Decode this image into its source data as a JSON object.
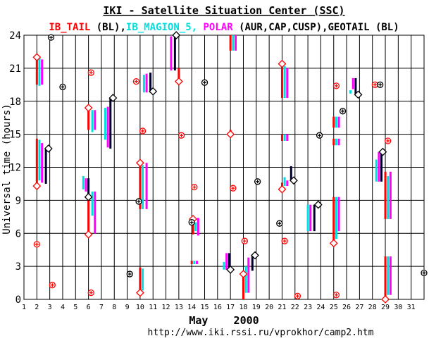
{
  "chart_data": {
    "type": "scatter",
    "title": "IKI - Satellite Situation Center (SSC)",
    "legend": [
      {
        "text": "IB_TAIL",
        "color": "#ff0000"
      },
      {
        "text": " (BL),",
        "color": "#000000"
      },
      {
        "text": "IB_MAGION_5,",
        "color": "#00e0e0"
      },
      {
        "text": " POLAR",
        "color": "#ff00ff"
      },
      {
        "text": " (AUR,CAP,CUSP),",
        "color": "#000000"
      },
      {
        "text": "GEOTAIL",
        "color": "#000000"
      },
      {
        "text": " (BL)",
        "color": "#000000"
      }
    ],
    "ylabel": "Universal time (hours)",
    "xlabel": "May    2000",
    "footer": "http://www.iki.rssi.ru/vprokhor/camp2.htm",
    "xlim": [
      1,
      32
    ],
    "ylim": [
      0,
      24
    ],
    "x_ticks": [
      1,
      2,
      3,
      4,
      5,
      6,
      7,
      8,
      9,
      10,
      11,
      12,
      13,
      14,
      15,
      16,
      17,
      18,
      19,
      20,
      21,
      22,
      23,
      24,
      25,
      26,
      27,
      28,
      29,
      30,
      31
    ],
    "y_ticks": [
      0,
      3,
      6,
      9,
      12,
      15,
      18,
      21,
      24
    ],
    "grid": true,
    "colors": {
      "ib_tail": "#ff0000",
      "magion": "#00e0e0",
      "polar": "#ff00ff",
      "geotail": "#000030",
      "grid": "#000000"
    },
    "segments": [
      {
        "day": 2.0,
        "series": "ib_tail",
        "from": 10.3,
        "to": 14.6
      },
      {
        "day": 2.2,
        "series": "magion",
        "from": 10.8,
        "to": 14.5
      },
      {
        "day": 2.4,
        "series": "polar",
        "from": 10.6,
        "to": 14.2
      },
      {
        "day": 2.7,
        "series": "geotail",
        "from": 10.5,
        "to": 13.7
      },
      {
        "day": 2.0,
        "series": "ib_tail",
        "from": 19.5,
        "to": 22.0
      },
      {
        "day": 2.2,
        "series": "magion",
        "from": 19.4,
        "to": 22.0
      },
      {
        "day": 2.4,
        "series": "polar",
        "from": 19.5,
        "to": 21.8
      },
      {
        "day": 5.6,
        "series": "magion",
        "from": 10.0,
        "to": 11.2
      },
      {
        "day": 5.8,
        "series": "polar",
        "from": 9.8,
        "to": 11.0
      },
      {
        "day": 6.0,
        "series": "geotail",
        "from": 9.3,
        "to": 11.0
      },
      {
        "day": 6.0,
        "series": "ib_tail",
        "from": 5.9,
        "to": 9.6
      },
      {
        "day": 6.3,
        "series": "magion",
        "from": 7.6,
        "to": 9.8
      },
      {
        "day": 6.5,
        "series": "polar",
        "from": 6.0,
        "to": 9.8
      },
      {
        "day": 6.0,
        "series": "ib_tail",
        "from": 15.4,
        "to": 17.4
      },
      {
        "day": 6.3,
        "series": "magion",
        "from": 15.2,
        "to": 17.2
      },
      {
        "day": 6.5,
        "series": "polar",
        "from": 15.4,
        "to": 17.2
      },
      {
        "day": 7.3,
        "series": "magion",
        "from": 14.5,
        "to": 17.4
      },
      {
        "day": 7.5,
        "series": "polar",
        "from": 13.8,
        "to": 17.5
      },
      {
        "day": 7.7,
        "series": "geotail",
        "from": 13.7,
        "to": 18.3
      },
      {
        "day": 10.0,
        "series": "ib_tail",
        "from": 0.6,
        "to": 2.9
      },
      {
        "day": 10.2,
        "series": "magion",
        "from": 0.8,
        "to": 2.8
      },
      {
        "day": 10.0,
        "series": "ib_tail",
        "from": 8.2,
        "to": 12.4
      },
      {
        "day": 10.2,
        "series": "magion",
        "from": 8.2,
        "to": 12.2
      },
      {
        "day": 10.5,
        "series": "polar",
        "from": 8.2,
        "to": 12.4
      },
      {
        "day": 10.3,
        "series": "magion",
        "from": 18.8,
        "to": 20.4
      },
      {
        "day": 10.5,
        "series": "polar",
        "from": 18.8,
        "to": 20.5
      },
      {
        "day": 10.8,
        "series": "geotail",
        "from": 18.8,
        "to": 20.6
      },
      {
        "day": 12.7,
        "series": "geotail",
        "from": 20.8,
        "to": 24.0
      },
      {
        "day": 12.4,
        "series": "polar",
        "from": 20.8,
        "to": 23.9
      },
      {
        "day": 13.0,
        "series": "ib_tail",
        "from": 19.8,
        "to": 21.0
      },
      {
        "day": 14.0,
        "series": "ib_tail",
        "from": 3.2,
        "to": 3.5
      },
      {
        "day": 14.2,
        "series": "magion",
        "from": 3.2,
        "to": 3.5
      },
      {
        "day": 14.4,
        "series": "polar",
        "from": 3.2,
        "to": 3.5
      },
      {
        "day": 14.1,
        "series": "ib_tail",
        "from": 5.9,
        "to": 7.3
      },
      {
        "day": 14.3,
        "series": "magion",
        "from": 6.2,
        "to": 7.0
      },
      {
        "day": 14.5,
        "series": "polar",
        "from": 5.8,
        "to": 7.4
      },
      {
        "day": 16.5,
        "series": "magion",
        "from": 2.7,
        "to": 3.4
      },
      {
        "day": 16.7,
        "series": "polar",
        "from": 2.7,
        "to": 4.2
      },
      {
        "day": 16.9,
        "series": "geotail",
        "from": 2.7,
        "to": 4.2
      },
      {
        "day": 17.0,
        "series": "ib_tail",
        "from": 22.6,
        "to": 24.0
      },
      {
        "day": 17.2,
        "series": "magion",
        "from": 22.6,
        "to": 24.0
      },
      {
        "day": 17.4,
        "series": "polar",
        "from": 22.6,
        "to": 24.0
      },
      {
        "day": 17.0,
        "series": "ib_tail",
        "from": 14.8,
        "to": 15.4
      },
      {
        "day": 18.0,
        "series": "ib_tail",
        "from": 0.0,
        "to": 2.4
      },
      {
        "day": 18.2,
        "series": "magion",
        "from": 0.6,
        "to": 3.0
      },
      {
        "day": 18.4,
        "series": "polar",
        "from": 0.6,
        "to": 3.8
      },
      {
        "day": 18.7,
        "series": "geotail",
        "from": 2.6,
        "to": 4.0
      },
      {
        "day": 21.0,
        "series": "ib_tail",
        "from": 18.3,
        "to": 21.4
      },
      {
        "day": 21.2,
        "series": "magion",
        "from": 18.3,
        "to": 21.2
      },
      {
        "day": 21.4,
        "series": "polar",
        "from": 18.3,
        "to": 21.0
      },
      {
        "day": 21.0,
        "series": "ib_tail",
        "from": 14.4,
        "to": 15.0
      },
      {
        "day": 21.2,
        "series": "magion",
        "from": 14.4,
        "to": 15.0
      },
      {
        "day": 21.4,
        "series": "polar",
        "from": 14.4,
        "to": 15.0
      },
      {
        "day": 21.0,
        "series": "ib_tail",
        "from": 10.0,
        "to": 10.6
      },
      {
        "day": 21.2,
        "series": "magion",
        "from": 10.3,
        "to": 11.1
      },
      {
        "day": 21.4,
        "series": "polar",
        "from": 10.3,
        "to": 10.8
      },
      {
        "day": 21.7,
        "series": "geotail",
        "from": 10.8,
        "to": 12.1
      },
      {
        "day": 23.0,
        "series": "magion",
        "from": 6.2,
        "to": 8.6
      },
      {
        "day": 23.2,
        "series": "polar",
        "from": 6.2,
        "to": 8.6
      },
      {
        "day": 23.5,
        "series": "geotail",
        "from": 6.2,
        "to": 8.6
      },
      {
        "day": 25.0,
        "series": "ib_tail",
        "from": 5.1,
        "to": 9.3
      },
      {
        "day": 25.2,
        "series": "magion",
        "from": 5.5,
        "to": 9.3
      },
      {
        "day": 25.4,
        "series": "polar",
        "from": 6.2,
        "to": 9.3
      },
      {
        "day": 25.0,
        "series": "ib_tail",
        "from": 14.0,
        "to": 14.6
      },
      {
        "day": 25.2,
        "series": "magion",
        "from": 14.0,
        "to": 14.6
      },
      {
        "day": 25.4,
        "series": "polar",
        "from": 14.0,
        "to": 14.6
      },
      {
        "day": 25.0,
        "series": "ib_tail",
        "from": 15.6,
        "to": 16.6
      },
      {
        "day": 25.2,
        "series": "magion",
        "from": 15.6,
        "to": 16.6
      },
      {
        "day": 25.4,
        "series": "polar",
        "from": 15.6,
        "to": 16.6
      },
      {
        "day": 26.3,
        "series": "magion",
        "from": 18.7,
        "to": 19.0
      },
      {
        "day": 26.5,
        "series": "polar",
        "from": 19.1,
        "to": 20.1
      },
      {
        "day": 26.7,
        "series": "geotail",
        "from": 18.6,
        "to": 20.1
      },
      {
        "day": 28.3,
        "series": "magion",
        "from": 10.7,
        "to": 12.7
      },
      {
        "day": 28.5,
        "series": "polar",
        "from": 10.7,
        "to": 13.4
      },
      {
        "day": 28.7,
        "series": "geotail",
        "from": 10.7,
        "to": 13.4
      },
      {
        "day": 29.0,
        "series": "ib_tail",
        "from": 7.3,
        "to": 11.6
      },
      {
        "day": 29.2,
        "series": "magion",
        "from": 7.3,
        "to": 11.2
      },
      {
        "day": 29.4,
        "series": "polar",
        "from": 7.3,
        "to": 11.6
      },
      {
        "day": 29.0,
        "series": "ib_tail",
        "from": 0.0,
        "to": 3.9
      },
      {
        "day": 29.2,
        "series": "magion",
        "from": 0.4,
        "to": 3.9
      },
      {
        "day": 29.4,
        "series": "polar",
        "from": 0.4,
        "to": 3.9
      }
    ],
    "markers": [
      {
        "day": 2.0,
        "hour": 22.0,
        "shape": "diamond",
        "color": "#ff0000"
      },
      {
        "day": 2.0,
        "hour": 10.3,
        "shape": "diamond",
        "color": "#ff0000"
      },
      {
        "day": 2.9,
        "hour": 13.7,
        "shape": "diamond",
        "color": "#000000"
      },
      {
        "day": 6.0,
        "hour": 9.3,
        "shape": "diamond",
        "color": "#000000"
      },
      {
        "day": 6.0,
        "hour": 5.9,
        "shape": "diamond",
        "color": "#ff0000"
      },
      {
        "day": 6.0,
        "hour": 17.4,
        "shape": "diamond",
        "color": "#ff0000"
      },
      {
        "day": 7.9,
        "hour": 18.3,
        "shape": "diamond",
        "color": "#000000"
      },
      {
        "day": 10.0,
        "hour": 0.6,
        "shape": "diamond",
        "color": "#ff0000"
      },
      {
        "day": 10.0,
        "hour": 12.4,
        "shape": "diamond",
        "color": "#ff0000"
      },
      {
        "day": 11.0,
        "hour": 18.9,
        "shape": "diamond",
        "color": "#000000"
      },
      {
        "day": 12.8,
        "hour": 24.0,
        "shape": "diamond",
        "color": "#000000"
      },
      {
        "day": 13.0,
        "hour": 19.8,
        "shape": "diamond",
        "color": "#ff0000"
      },
      {
        "day": 14.1,
        "hour": 7.3,
        "shape": "diamond",
        "color": "#ff0000"
      },
      {
        "day": 17.0,
        "hour": 15.0,
        "shape": "diamond",
        "color": "#ff0000"
      },
      {
        "day": 17.0,
        "hour": 2.7,
        "shape": "diamond",
        "color": "#000000"
      },
      {
        "day": 18.0,
        "hour": 2.3,
        "shape": "diamond",
        "color": "#ff0000"
      },
      {
        "day": 18.9,
        "hour": 4.0,
        "shape": "diamond",
        "color": "#000000"
      },
      {
        "day": 21.0,
        "hour": 21.4,
        "shape": "diamond",
        "color": "#ff0000"
      },
      {
        "day": 21.0,
        "hour": 10.0,
        "shape": "diamond",
        "color": "#ff0000"
      },
      {
        "day": 21.9,
        "hour": 10.8,
        "shape": "diamond",
        "color": "#000000"
      },
      {
        "day": 23.8,
        "hour": 8.6,
        "shape": "diamond",
        "color": "#000000"
      },
      {
        "day": 25.0,
        "hour": 5.1,
        "shape": "diamond",
        "color": "#ff0000"
      },
      {
        "day": 26.9,
        "hour": 18.6,
        "shape": "diamond",
        "color": "#000000"
      },
      {
        "day": 28.8,
        "hour": 13.4,
        "shape": "diamond",
        "color": "#000000"
      },
      {
        "day": 29.0,
        "hour": 0.0,
        "shape": "diamond",
        "color": "#ff0000"
      },
      {
        "day": 2.0,
        "hour": 5.0,
        "shape": "circle-plus",
        "color": "#ff0000"
      },
      {
        "day": 3.2,
        "hour": 1.3,
        "shape": "circle-plus",
        "color": "#ff0000"
      },
      {
        "day": 6.2,
        "hour": 0.6,
        "shape": "circle-plus",
        "color": "#ff0000"
      },
      {
        "day": 6.2,
        "hour": 20.6,
        "shape": "circle-plus",
        "color": "#ff0000"
      },
      {
        "day": 9.7,
        "hour": 19.8,
        "shape": "circle-plus",
        "color": "#ff0000"
      },
      {
        "day": 10.2,
        "hour": 15.3,
        "shape": "circle-plus",
        "color": "#ff0000"
      },
      {
        "day": 13.2,
        "hour": 14.9,
        "shape": "circle-plus",
        "color": "#ff0000"
      },
      {
        "day": 14.2,
        "hour": 10.2,
        "shape": "circle-plus",
        "color": "#ff0000"
      },
      {
        "day": 17.2,
        "hour": 10.1,
        "shape": "circle-plus",
        "color": "#ff0000"
      },
      {
        "day": 18.1,
        "hour": 5.3,
        "shape": "circle-plus",
        "color": "#ff0000"
      },
      {
        "day": 21.2,
        "hour": 5.3,
        "shape": "circle-plus",
        "color": "#ff0000"
      },
      {
        "day": 22.2,
        "hour": 0.3,
        "shape": "circle-plus",
        "color": "#ff0000"
      },
      {
        "day": 25.2,
        "hour": 0.4,
        "shape": "circle-plus",
        "color": "#ff0000"
      },
      {
        "day": 25.2,
        "hour": 19.4,
        "shape": "circle-plus",
        "color": "#ff0000"
      },
      {
        "day": 28.2,
        "hour": 19.5,
        "shape": "circle-plus",
        "color": "#ff0000"
      },
      {
        "day": 29.2,
        "hour": 14.4,
        "shape": "circle-plus",
        "color": "#ff0000"
      },
      {
        "day": 3.1,
        "hour": 23.8,
        "shape": "circle-plus",
        "color": "#000000"
      },
      {
        "day": 4.0,
        "hour": 19.3,
        "shape": "circle-plus",
        "color": "#000000"
      },
      {
        "day": 9.2,
        "hour": 2.3,
        "shape": "circle-plus",
        "color": "#000000"
      },
      {
        "day": 9.9,
        "hour": 8.9,
        "shape": "circle-plus",
        "color": "#000000"
      },
      {
        "day": 14.0,
        "hour": 7.0,
        "shape": "circle-plus",
        "color": "#000000"
      },
      {
        "day": 15.0,
        "hour": 19.7,
        "shape": "circle-plus",
        "color": "#000000"
      },
      {
        "day": 19.1,
        "hour": 10.7,
        "shape": "circle-plus",
        "color": "#000000"
      },
      {
        "day": 20.8,
        "hour": 6.9,
        "shape": "circle-plus",
        "color": "#000000"
      },
      {
        "day": 23.9,
        "hour": 14.9,
        "shape": "circle-plus",
        "color": "#000000"
      },
      {
        "day": 25.7,
        "hour": 17.1,
        "shape": "circle-plus",
        "color": "#000000"
      },
      {
        "day": 28.6,
        "hour": 19.5,
        "shape": "circle-plus",
        "color": "#000000"
      },
      {
        "day": 32.0,
        "hour": 2.4,
        "shape": "circle-plus",
        "color": "#000000"
      }
    ]
  }
}
